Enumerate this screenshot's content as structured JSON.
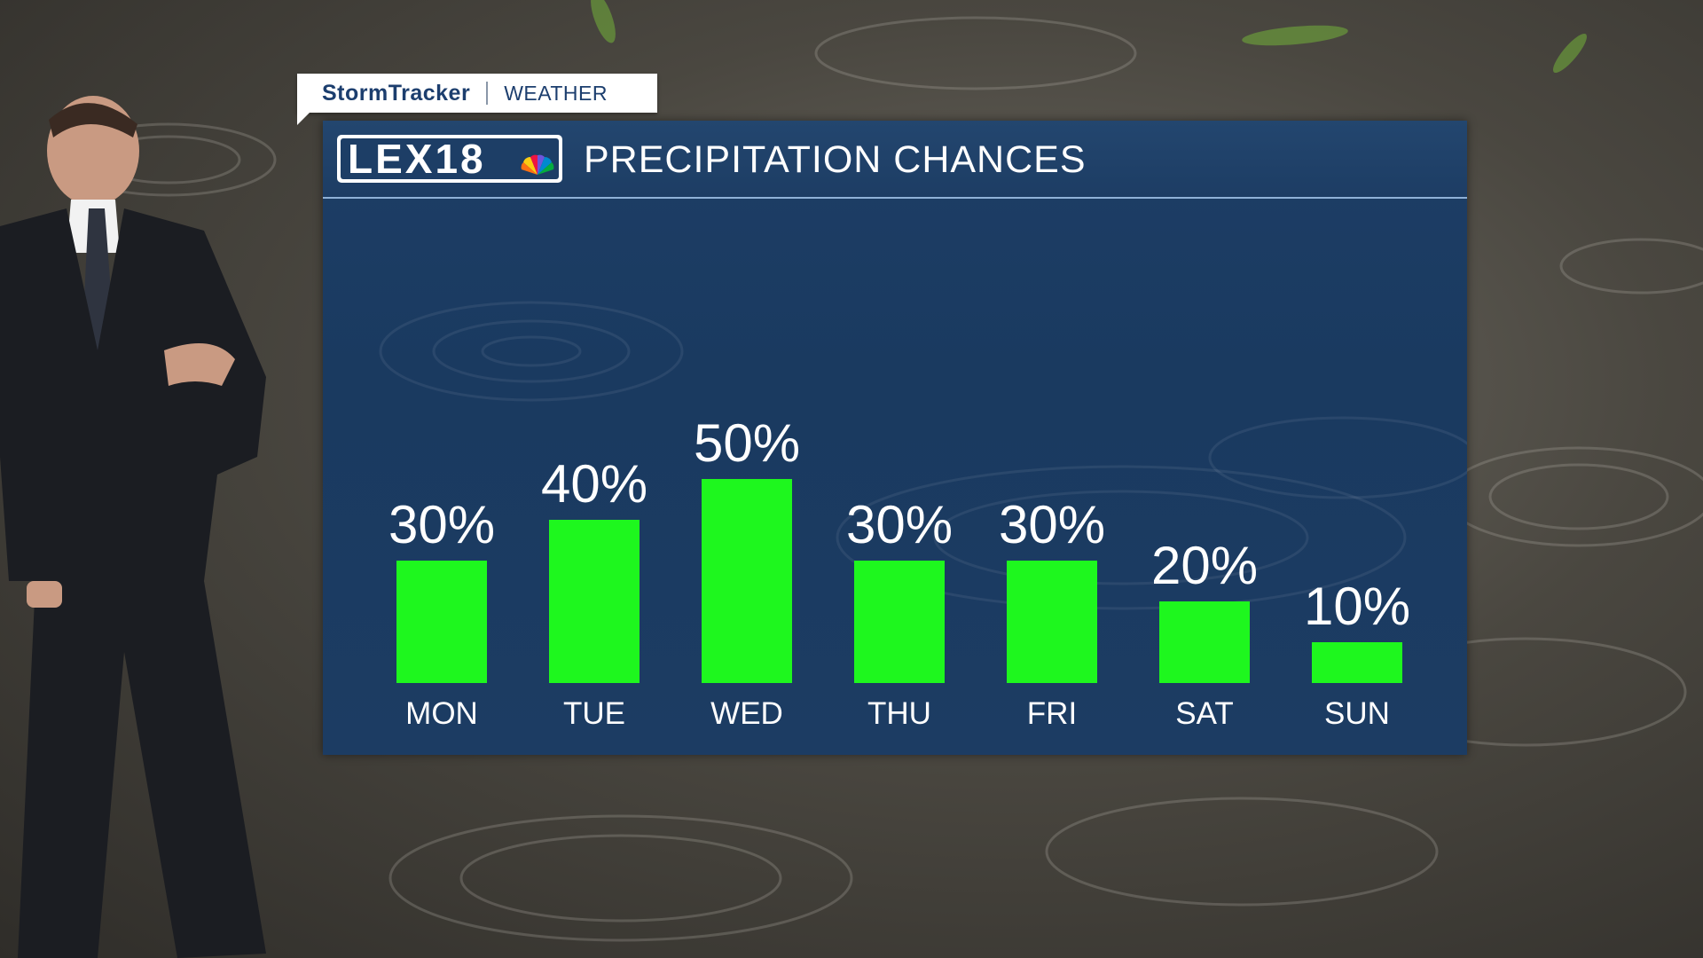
{
  "brand": {
    "name": "StormTracker",
    "section": "WEATHER"
  },
  "logo": {
    "text": "LEX18"
  },
  "colors": {
    "bar": "#1ef71e",
    "panel": "#1d3e66",
    "text": "#ffffff"
  },
  "chart_data": {
    "type": "bar",
    "title": "PRECIPITATION CHANCES",
    "categories": [
      "MON",
      "TUE",
      "WED",
      "THU",
      "FRI",
      "SAT",
      "SUN"
    ],
    "values": [
      30,
      40,
      50,
      30,
      30,
      20,
      10
    ],
    "labels": [
      "30%",
      "40%",
      "50%",
      "30%",
      "30%",
      "20%",
      "10%"
    ],
    "unit": "%",
    "ylim": [
      0,
      50
    ],
    "grid": false,
    "legend": "none"
  }
}
